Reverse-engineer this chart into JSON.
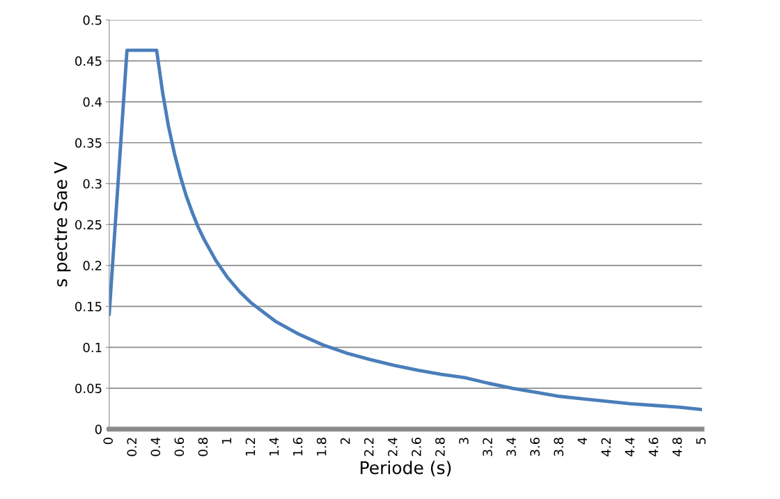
{
  "chart_data": {
    "type": "line",
    "xlabel": "Periode (s)",
    "ylabel": "s pectre Sae V",
    "series": [
      {
        "color": "#4a7ebb",
        "x": [
          0,
          0.15,
          0.4,
          0.45,
          0.5,
          0.55,
          0.6,
          0.65,
          0.7,
          0.75,
          0.8,
          0.9,
          1.0,
          1.1,
          1.2,
          1.4,
          1.6,
          1.8,
          2.0,
          2.2,
          2.4,
          2.6,
          2.8,
          3.0,
          3.2,
          3.4,
          3.6,
          3.8,
          4.0,
          4.2,
          4.4,
          4.6,
          4.8,
          5.0
        ],
        "values": [
          0.14,
          0.463,
          0.463,
          0.412,
          0.37,
          0.337,
          0.309,
          0.285,
          0.265,
          0.247,
          0.232,
          0.206,
          0.185,
          0.168,
          0.154,
          0.132,
          0.116,
          0.103,
          0.093,
          0.085,
          0.078,
          0.072,
          0.067,
          0.063,
          0.056,
          0.05,
          0.045,
          0.04,
          0.037,
          0.034,
          0.031,
          0.029,
          0.027,
          0.024
        ]
      }
    ],
    "xlim": [
      0,
      5
    ],
    "xticks": [
      0,
      0.2,
      0.4,
      0.6,
      0.8,
      1,
      1.2,
      1.4,
      1.6,
      1.8,
      2,
      2.2,
      2.4,
      2.6,
      2.8,
      3,
      3.2,
      3.4,
      3.6,
      3.8,
      4,
      4.2,
      4.4,
      4.6,
      4.8,
      5
    ],
    "ylim": [
      0,
      0.5
    ],
    "yticks": [
      0,
      0.05,
      0.1,
      0.15,
      0.2,
      0.25,
      0.3,
      0.35,
      0.4,
      0.45,
      0.5
    ],
    "grid": "y",
    "marker": "none",
    "line_style": "solid"
  }
}
